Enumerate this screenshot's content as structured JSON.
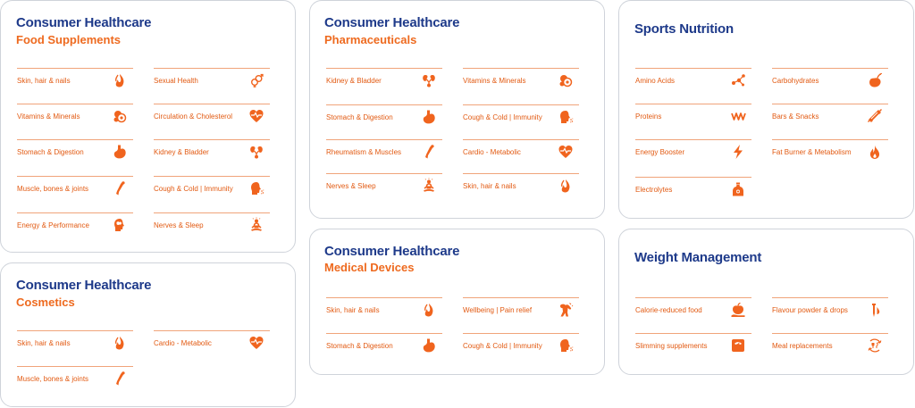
{
  "colors": {
    "title": "#1e3a8a",
    "subtitle": "#ee6a1f",
    "item": "#e25a12",
    "icon": "#f0641e",
    "divider": "#f0a47a",
    "border": "#cfd3da"
  },
  "cards": {
    "food_supplements": {
      "title": "Consumer Healthcare",
      "subtitle": "Food Supplements",
      "items": [
        {
          "label": "Skin, hair & nails",
          "icon": "flame-leaf-icon"
        },
        {
          "label": "Sexual Health",
          "icon": "gender-symbols-icon"
        },
        {
          "label": "Vitamins & Minerals",
          "icon": "pills-icon"
        },
        {
          "label": "Circulation & Cholesterol",
          "icon": "heart-pulse-icon"
        },
        {
          "label": "Stomach & Digestion",
          "icon": "stomach-icon"
        },
        {
          "label": "Kidney & Bladder",
          "icon": "kidney-icon"
        },
        {
          "label": "Muscle, bones & joints",
          "icon": "bone-icon"
        },
        {
          "label": "Cough & Cold | Immunity",
          "icon": "cough-head-icon"
        },
        {
          "label": "Energy & Performance",
          "icon": "brain-head-icon"
        },
        {
          "label": "Nerves & Sleep",
          "icon": "meditation-icon"
        }
      ]
    },
    "cosmetics": {
      "title": "Consumer Healthcare",
      "subtitle": "Cosmetics",
      "items": [
        {
          "label": "Skin, hair & nails",
          "icon": "flame-leaf-icon"
        },
        {
          "label": "Cardio - Metabolic",
          "icon": "heart-pulse-icon"
        },
        {
          "label": "Muscle, bones & joints",
          "icon": "bone-icon"
        }
      ]
    },
    "pharmaceuticals": {
      "title": "Consumer Healthcare",
      "subtitle": "Pharmaceuticals",
      "items": [
        {
          "label": "Kidney & Bladder",
          "icon": "kidney-icon"
        },
        {
          "label": "Vitamins & Minerals",
          "icon": "pills-icon"
        },
        {
          "label": "Stomach & Digestion",
          "icon": "stomach-icon"
        },
        {
          "label": "Cough & Cold | Immunity",
          "icon": "cough-head-icon"
        },
        {
          "label": "Rheumatism & Muscles",
          "icon": "bone-icon"
        },
        {
          "label": "Cardio - Metabolic",
          "icon": "heart-pulse-icon"
        },
        {
          "label": "Nerves & Sleep",
          "icon": "meditation-icon"
        },
        {
          "label": "Skin, hair & nails",
          "icon": "flame-leaf-icon"
        }
      ]
    },
    "medical_devices": {
      "title": "Consumer Healthcare",
      "subtitle": "Medical Devices",
      "items": [
        {
          "label": "Skin, hair & nails",
          "icon": "flame-leaf-icon"
        },
        {
          "label": "Wellbeing | Pain relief",
          "icon": "pain-relief-icon"
        },
        {
          "label": "Stomach & Digestion",
          "icon": "stomach-icon"
        },
        {
          "label": "Cough & Cold | Immunity",
          "icon": "cough-head-icon"
        }
      ]
    },
    "sports_nutrition": {
      "title": "Sports Nutrition",
      "items": [
        {
          "label": "Amino Acids",
          "icon": "molecule-icon"
        },
        {
          "label": "Carbohydrates",
          "icon": "sweet-potato-icon"
        },
        {
          "label": "Proteins",
          "icon": "protein-chain-icon"
        },
        {
          "label": "Bars & Snacks",
          "icon": "snack-bar-icon"
        },
        {
          "label": "Energy Booster",
          "icon": "lightning-icon"
        },
        {
          "label": "Fat Burner & Metabolism",
          "icon": "fire-icon"
        },
        {
          "label": "Electrolytes",
          "icon": "bottle-icon"
        }
      ]
    },
    "weight_management": {
      "title": "Weight Management",
      "items": [
        {
          "label": "Calorie-reduced food",
          "icon": "apple-hand-icon"
        },
        {
          "label": "Flavour powder & drops",
          "icon": "dropper-icon"
        },
        {
          "label": "Slimming supplements",
          "icon": "scale-icon"
        },
        {
          "label": "Meal replacements",
          "icon": "meal-cycle-icon"
        }
      ]
    }
  }
}
